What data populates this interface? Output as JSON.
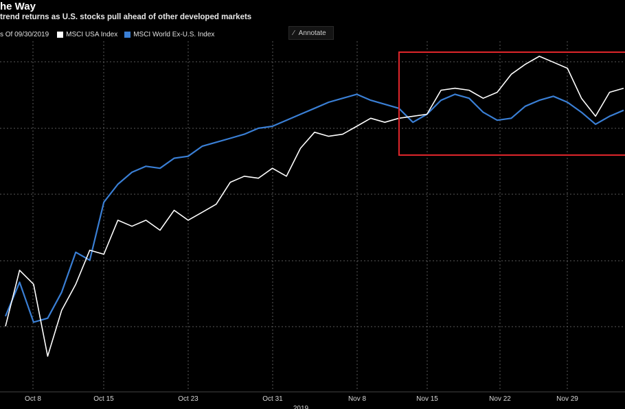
{
  "header": {
    "title": "he Way",
    "subtitle": "trend returns as U.S. stocks pull ahead of other developed markets"
  },
  "legend": {
    "as_of": "s Of 09/30/2019",
    "items": [
      {
        "label": "MSCI USA Index",
        "color": "#ffffff"
      },
      {
        "label": "MSCI World Ex-U.S. Index",
        "color": "#3a7fd5"
      }
    ]
  },
  "toolbar": {
    "annotate_label": "Annotate",
    "annotate_icon": "pencil-icon"
  },
  "colors": {
    "background": "#000000",
    "highlight_box": "#e0262b",
    "grid": "#5a5a5a"
  },
  "chart_data": {
    "type": "line",
    "title": "he Way",
    "subtitle": "trend returns as U.S. stocks pull ahead of other developed markets",
    "xlabel": "2019",
    "ylabel": "",
    "x_tick_labels": [
      "Oct 8",
      "Oct 15",
      "Oct 23",
      "Oct 31",
      "Nov 8",
      "Nov 15",
      "Nov 22",
      "Nov 29"
    ],
    "y_tick_labels_visible": false,
    "grid": true,
    "highlight_region": {
      "from": "Nov 13",
      "to": "Dec 5"
    },
    "series": [
      {
        "name": "MSCI USA Index",
        "color": "#ffffff",
        "values": [
          2.6,
          5.4,
          4.7,
          1.1,
          3.4,
          4.7,
          6.4,
          6.2,
          7.9,
          7.6,
          7.9,
          7.4,
          8.4,
          7.9,
          8.3,
          8.7,
          9.8,
          10.1,
          10.0,
          10.5,
          10.1,
          11.5,
          12.3,
          12.1,
          12.2,
          12.6,
          13.0,
          12.8,
          13.0,
          13.1,
          13.2,
          14.4,
          14.5,
          14.4,
          14.0,
          14.3,
          15.2,
          15.7,
          16.1,
          15.8,
          15.5,
          14.0,
          13.1,
          14.3,
          14.5
        ]
      },
      {
        "name": "MSCI World Ex-U.S. Index",
        "color": "#3a7fd5",
        "values": [
          3.1,
          4.8,
          2.8,
          3.0,
          4.3,
          6.3,
          5.9,
          8.8,
          9.7,
          10.3,
          10.6,
          10.5,
          11.0,
          11.1,
          11.6,
          11.8,
          12.0,
          12.2,
          12.5,
          12.6,
          12.9,
          13.2,
          13.5,
          13.8,
          14.0,
          14.2,
          13.9,
          13.7,
          13.5,
          12.8,
          13.2,
          13.9,
          14.2,
          14.0,
          13.3,
          12.9,
          13.0,
          13.6,
          13.9,
          14.1,
          13.8,
          13.3,
          12.7,
          13.1,
          13.4
        ]
      }
    ]
  }
}
